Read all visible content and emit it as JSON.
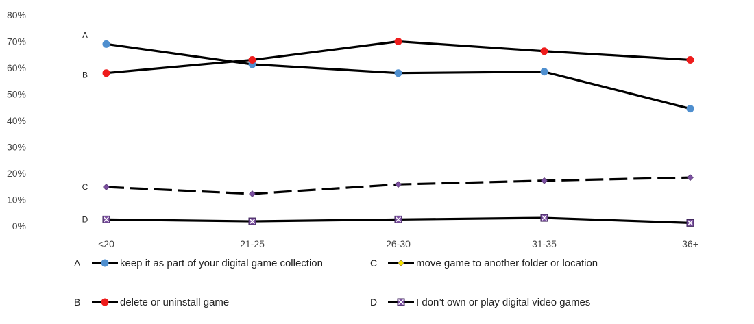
{
  "chart_data": {
    "type": "line",
    "categories": [
      "<20",
      "21-25",
      "26-30",
      "31-35",
      "36+"
    ],
    "y_ticks": [
      "0%",
      "10%",
      "20%",
      "30%",
      "40%",
      "50%",
      "60%",
      "70%",
      "80%"
    ],
    "ylim": [
      0,
      80
    ],
    "grid": false,
    "legend_position": "bottom",
    "series": [
      {
        "letter": "A",
        "name": "keep it as part of your digital game collection",
        "values": [
          69,
          61.3,
          58,
          58.5,
          44.5
        ],
        "marker": "circle",
        "marker_color": "#4f8fcf",
        "line_color": "#000000",
        "dashed": false
      },
      {
        "letter": "B",
        "name": "delete or uninstall game",
        "values": [
          58,
          63,
          70,
          66.3,
          63
        ],
        "marker": "circle",
        "marker_color": "#ee1c1c",
        "line_color": "#000000",
        "dashed": false
      },
      {
        "letter": "C",
        "name": "move game to another folder or location",
        "values": [
          14.8,
          12.2,
          15.8,
          17.2,
          18.4
        ],
        "marker": "diamond",
        "marker_color": "#7b4fa0",
        "legend_marker_color": "#f4e300",
        "line_color": "#000000",
        "dashed": true
      },
      {
        "letter": "D",
        "name": "I don’t own or play digital video games",
        "values": [
          2.5,
          1.8,
          2.5,
          3.1,
          1.2
        ],
        "marker": "x-square",
        "marker_color": "#7b4fa0",
        "line_color": "#000000",
        "dashed": false
      }
    ]
  }
}
